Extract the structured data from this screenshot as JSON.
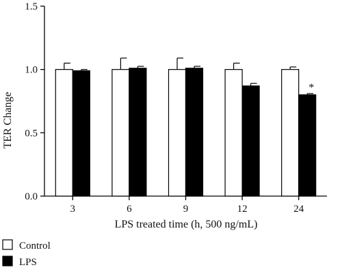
{
  "chart_data": {
    "type": "bar",
    "categories": [
      "3",
      "6",
      "9",
      "12",
      "24"
    ],
    "series": [
      {
        "name": "Control",
        "color": "#ffffff",
        "values": [
          1.0,
          1.0,
          1.0,
          1.0,
          1.0
        ],
        "error": [
          0.05,
          0.09,
          0.09,
          0.05,
          0.02
        ]
      },
      {
        "name": "LPS",
        "color": "#000000",
        "values": [
          0.99,
          1.01,
          1.01,
          0.87,
          0.8
        ],
        "error": [
          0.01,
          0.015,
          0.015,
          0.02,
          0.01
        ]
      }
    ],
    "xlabel": "LPS treated time (h, 500 ng/mL)",
    "ylabel": "TER Change",
    "ylim": [
      0,
      1.5
    ],
    "yticks": [
      "0.0",
      "0.5",
      "1.0",
      "1.5"
    ],
    "annotations": [
      {
        "category": "24",
        "series": "LPS",
        "text": "*"
      }
    ],
    "legend_position": "bottom-left"
  }
}
